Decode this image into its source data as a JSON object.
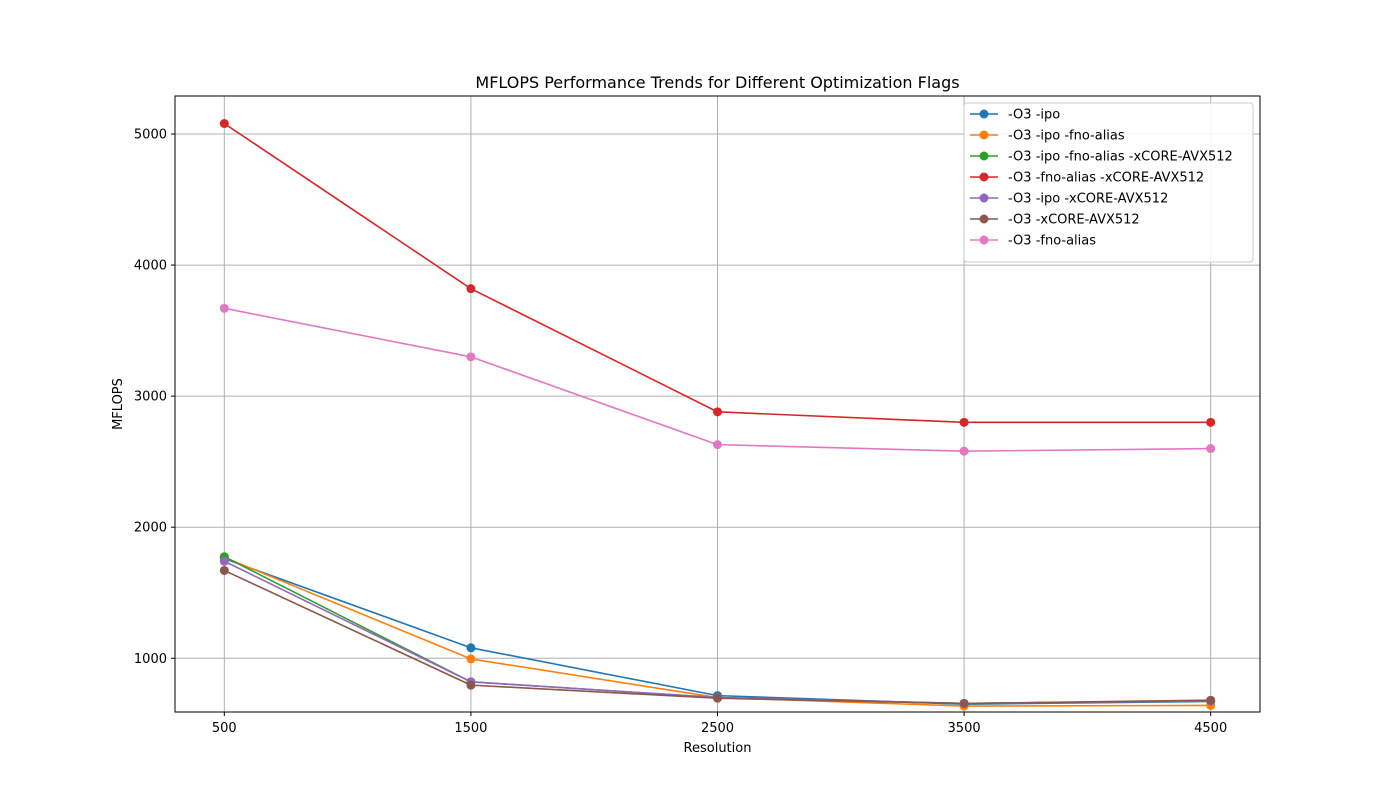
{
  "chart_data": {
    "type": "line",
    "title": "MFLOPS Performance Trends for Different Optimization Flags",
    "xlabel": "Resolution",
    "ylabel": "MFLOPS",
    "x": [
      500,
      1500,
      2500,
      3500,
      4500
    ],
    "x_tick_labels": [
      "500",
      "1500",
      "2500",
      "3500",
      "4500"
    ],
    "y_ticks": [
      1000,
      2000,
      3000,
      4000,
      5000
    ],
    "y_tick_labels": [
      "1000",
      "2000",
      "3000",
      "4000",
      "5000"
    ],
    "xlim": [
      300,
      4700
    ],
    "ylim": [
      590,
      5290
    ],
    "grid": true,
    "legend_position": "top-right",
    "series": [
      {
        "name": "-O3 -ipo",
        "color": "#1f77b4",
        "values": [
          1760,
          1080,
          715,
          650,
          670
        ]
      },
      {
        "name": "-O3 -ipo -fno-alias",
        "color": "#ff7f0e",
        "values": [
          1770,
          995,
          700,
          635,
          640
        ]
      },
      {
        "name": "-O3 -ipo -fno-alias -xCORE-AVX512",
        "color": "#2ca02c",
        "values": [
          1775,
          820,
          700,
          655,
          675
        ]
      },
      {
        "name": "-O3 -fno-alias -xCORE-AVX512",
        "color": "#d62728",
        "values": [
          5080,
          3820,
          2880,
          2800,
          2800
        ]
      },
      {
        "name": "-O3 -ipo -xCORE-AVX512",
        "color": "#9467bd",
        "values": [
          1740,
          820,
          700,
          655,
          675
        ]
      },
      {
        "name": "-O3 -xCORE-AVX512",
        "color": "#8c564b",
        "values": [
          1670,
          795,
          695,
          655,
          680
        ]
      },
      {
        "name": "-O3 -fno-alias",
        "color": "#e377c2",
        "values": [
          3670,
          3300,
          2630,
          2580,
          2600
        ]
      }
    ]
  }
}
